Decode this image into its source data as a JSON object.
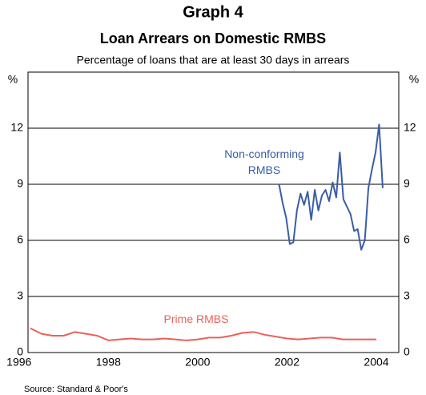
{
  "chart_data": {
    "type": "line",
    "title": "Graph 4",
    "subtitle": "Loan Arrears on Domestic RMBS",
    "note": "Percentage of loans that are at least 30 days in arrears",
    "y_unit": "%",
    "y2_unit": "%",
    "source": "Source: Standard & Poor's",
    "xlim": [
      1996.2,
      2004.5
    ],
    "xticks": [
      {
        "value": 1996.5,
        "label": "1996"
      },
      {
        "value": 1998.5,
        "label": "1998"
      },
      {
        "value": 2000.5,
        "label": "2000"
      },
      {
        "value": 2002.5,
        "label": "2002"
      },
      {
        "value": 2004.5,
        "label": "2004"
      }
    ],
    "ylim": [
      0,
      15
    ],
    "yticks": [
      0,
      3,
      6,
      9,
      12
    ],
    "y2lim": [
      0,
      15
    ],
    "y2ticks": [
      0,
      3,
      6,
      9,
      12
    ],
    "grid": true,
    "series": [
      {
        "name": "Prime RMBS",
        "color": "#e8625a",
        "x": [
          1996.25,
          1996.5,
          1996.75,
          1997,
          1997.25,
          1997.5,
          1997.75,
          1998,
          1998.25,
          1998.5,
          1998.75,
          1999,
          1999.25,
          1999.5,
          1999.75,
          2000,
          2000.25,
          2000.5,
          2000.75,
          2001,
          2001.25,
          2001.5,
          2001.75,
          2002,
          2002.25,
          2002.5,
          2002.75,
          2003,
          2003.25,
          2003.5,
          2003.75,
          2004
        ],
        "values": [
          1.3,
          1.0,
          0.9,
          0.9,
          1.1,
          1.0,
          0.9,
          0.65,
          0.7,
          0.75,
          0.7,
          0.7,
          0.75,
          0.7,
          0.65,
          0.7,
          0.8,
          0.8,
          0.9,
          1.05,
          1.1,
          0.95,
          0.85,
          0.75,
          0.7,
          0.75,
          0.8,
          0.8,
          0.7,
          0.7,
          0.7,
          0.7
        ]
      },
      {
        "name": "Non-conforming RMBS",
        "color": "#3a5da8",
        "x": [
          2001.82,
          2001.9,
          2001.98,
          2002.06,
          2002.14,
          2002.22,
          2002.3,
          2002.38,
          2002.46,
          2002.54,
          2002.62,
          2002.7,
          2002.78,
          2002.86,
          2002.94,
          2003.02,
          2003.1,
          2003.18,
          2003.26,
          2003.34,
          2003.42,
          2003.5,
          2003.58,
          2003.66,
          2003.74,
          2003.82,
          2003.9,
          2003.98,
          2004.06,
          2004.14
        ],
        "values": [
          9.0,
          8.0,
          7.2,
          5.8,
          5.9,
          7.6,
          8.5,
          7.9,
          8.6,
          7.1,
          8.7,
          7.6,
          8.4,
          8.7,
          8.1,
          9.1,
          8.3,
          10.7,
          8.2,
          7.8,
          7.4,
          6.5,
          6.6,
          5.5,
          6.0,
          8.8,
          9.8,
          10.7,
          12.2,
          8.8
        ]
      }
    ]
  }
}
